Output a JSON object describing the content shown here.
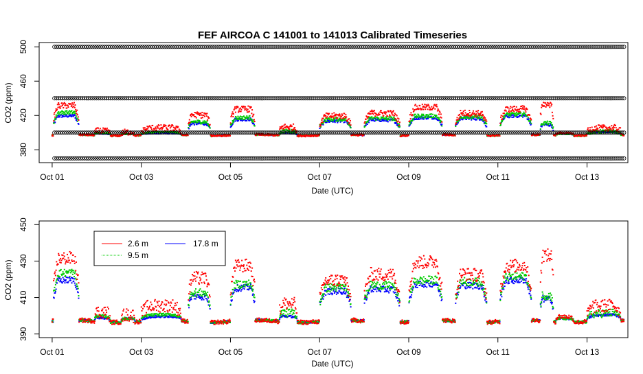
{
  "title": "FEF   AIRCOA  C    141001  to  141013   Calibrated Timeseries",
  "colors": {
    "s1": "#ff0000",
    "s2": "#00cc00",
    "s3": "#0000ff",
    "ref": "#000000"
  },
  "chart_data": [
    {
      "type": "scatter",
      "xlabel": "Date (UTC)",
      "ylabel": "CO2 (ppm)",
      "xlim": [
        "2014-09-30T17:00",
        "2014-10-13T22:00"
      ],
      "ylim": [
        365,
        505
      ],
      "x_ticks": [
        "Oct 01",
        "Oct 03",
        "Oct 05",
        "Oct 07",
        "Oct 09",
        "Oct 11",
        "Oct 13"
      ],
      "y_ticks": [
        380,
        420,
        460,
        500
      ],
      "grid": false,
      "reference_levels": [
        370,
        400,
        440,
        500
      ],
      "series": [
        {
          "name": "2.6 m",
          "color": "#ff0000"
        },
        {
          "name": "9.5 m",
          "color": "#00cc00"
        },
        {
          "name": "17.8 m",
          "color": "#0000ff"
        }
      ]
    },
    {
      "type": "scatter",
      "xlabel": "Date (UTC)",
      "ylabel": "CO2 (ppm)",
      "xlim": [
        "2014-09-30T17:00",
        "2014-10-13T22:00"
      ],
      "ylim": [
        388,
        452
      ],
      "x_ticks": [
        "Oct 01",
        "Oct 03",
        "Oct 05",
        "Oct 07",
        "Oct 09",
        "Oct 11",
        "Oct 13"
      ],
      "y_ticks": [
        390,
        410,
        430,
        450
      ],
      "grid": false,
      "legend_placement": "top-left",
      "legend": [
        "2.6 m",
        "9.5 m",
        "17.8 m"
      ],
      "series": [
        {
          "name": "2.6 m",
          "color": "#ff0000"
        },
        {
          "name": "9.5 m",
          "color": "#00cc00"
        },
        {
          "name": "17.8 m",
          "color": "#0000ff"
        }
      ]
    }
  ]
}
